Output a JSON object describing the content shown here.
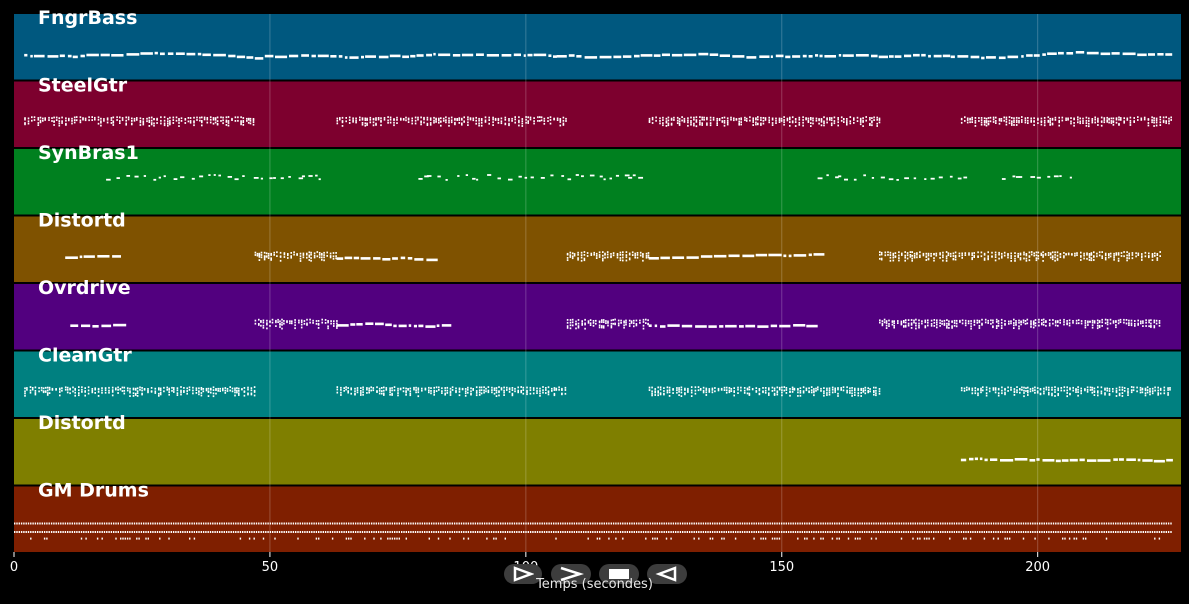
{
  "app": {
    "background": "#000000"
  },
  "timeline": {
    "x_axis_label": "Temps (secondes)",
    "xlim": [
      0,
      228
    ],
    "ticks": [
      {
        "value": 0,
        "label": "0"
      },
      {
        "value": 50,
        "label": "50"
      },
      {
        "value": 100,
        "label": "100"
      },
      {
        "value": 150,
        "label": "150"
      },
      {
        "value": 200,
        "label": "200"
      }
    ],
    "grid": true
  },
  "tracks": [
    {
      "name": "FngrBass",
      "color": "#00587f",
      "style": "lead",
      "sections": [
        [
          2,
          49
        ],
        [
          49,
          106
        ],
        [
          106,
          125
        ],
        [
          125,
          183
        ],
        [
          183,
          226
        ]
      ]
    },
    {
      "name": "SteelGtr",
      "color": "#7d002e",
      "style": "chords",
      "sections": [
        [
          2,
          47
        ],
        [
          63,
          108
        ],
        [
          124,
          169
        ],
        [
          185,
          226
        ]
      ]
    },
    {
      "name": "SynBras1",
      "color": "#00801f",
      "style": "sparse",
      "sections": [
        [
          18,
          60
        ],
        [
          79,
          123
        ],
        [
          157,
          186
        ],
        [
          193,
          207
        ]
      ]
    },
    {
      "name": "Distortd",
      "color": "#7f5200",
      "style": "riff",
      "sections": [
        [
          10,
          21,
          "lead"
        ],
        [
          47,
          63,
          "chords"
        ],
        [
          63,
          83,
          "lead"
        ],
        [
          108,
          124,
          "chords"
        ],
        [
          124,
          157,
          "lead"
        ],
        [
          169,
          224,
          "chords"
        ]
      ]
    },
    {
      "name": "Ovrdrive",
      "color": "#52007f",
      "style": "riff",
      "sections": [
        [
          11,
          22,
          "lead"
        ],
        [
          47,
          63,
          "chords"
        ],
        [
          63,
          84,
          "lead"
        ],
        [
          108,
          124,
          "chords"
        ],
        [
          124,
          157,
          "lead"
        ],
        [
          169,
          224,
          "chords"
        ]
      ]
    },
    {
      "name": "CleanGtr",
      "color": "#008080",
      "style": "chords",
      "sections": [
        [
          2,
          47
        ],
        [
          63,
          108
        ],
        [
          124,
          169
        ],
        [
          185,
          226
        ]
      ]
    },
    {
      "name": "Distortd",
      "color": "#7f7f00",
      "style": "lead",
      "sections": [
        [
          185,
          226
        ]
      ]
    },
    {
      "name": "GM Drums",
      "color": "#7f1f00",
      "style": "drums",
      "sections": [
        [
          0,
          226
        ]
      ]
    }
  ],
  "transport": {
    "buttons": [
      {
        "name": "play-button",
        "icon": "play-icon"
      },
      {
        "name": "forward-button",
        "icon": "forward-icon"
      },
      {
        "name": "stop-button",
        "icon": "stop-icon"
      },
      {
        "name": "rewind-button",
        "icon": "rewind-icon"
      }
    ]
  }
}
